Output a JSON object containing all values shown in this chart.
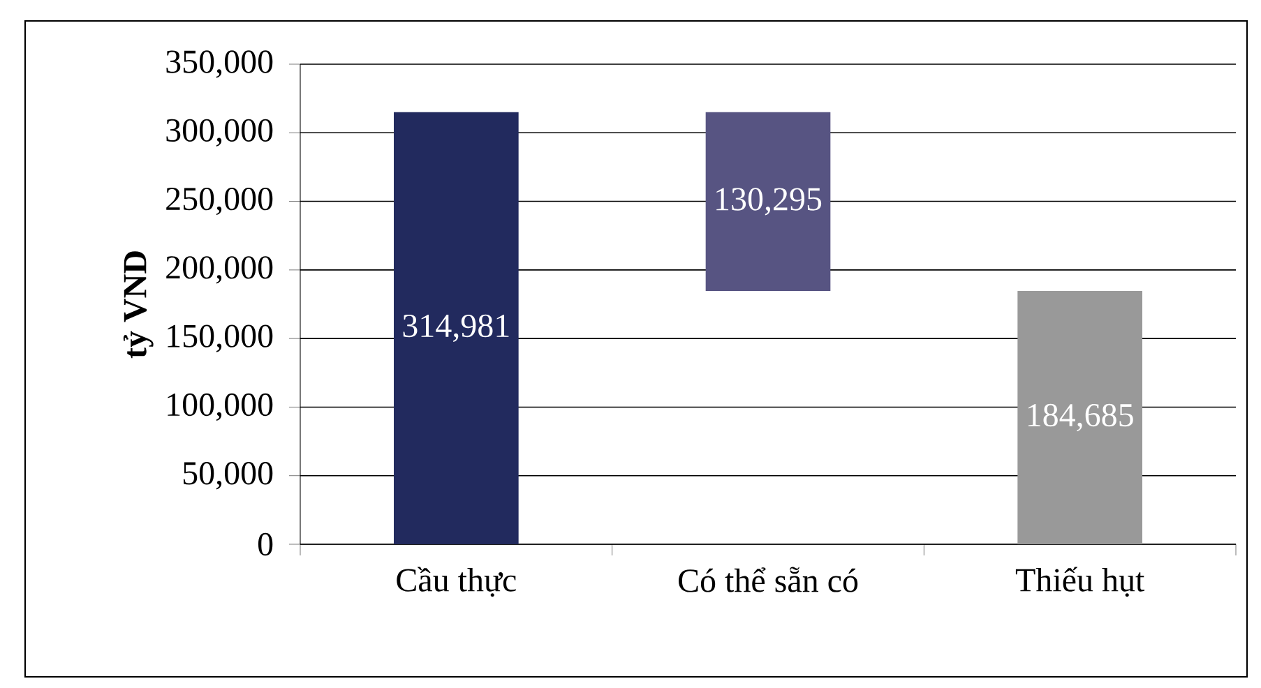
{
  "chart_data": {
    "type": "bar",
    "ylabel": "tỷ VND",
    "categories": [
      "Cầu thực",
      "Có thể sẵn có",
      "Thiếu hụt"
    ],
    "values": [
      314981,
      130295,
      184685
    ],
    "base": [
      0,
      184685,
      0
    ],
    "colors": [
      "#222a5e",
      "#575482",
      "#999999"
    ],
    "data_labels": true,
    "value_labels": [
      "314,981",
      "130,295",
      "184,685"
    ],
    "ylim": [
      0,
      350000
    ],
    "yticks": [
      {
        "value": 0,
        "label": "0"
      },
      {
        "value": 50000,
        "label": "50,000"
      },
      {
        "value": 100000,
        "label": "100,000"
      },
      {
        "value": 150000,
        "label": "150,000"
      },
      {
        "value": 200000,
        "label": "200,000"
      },
      {
        "value": 250000,
        "label": "250,000"
      },
      {
        "value": 300000,
        "label": "300,000"
      },
      {
        "value": 350000,
        "label": "350,000"
      }
    ],
    "grid": "y"
  }
}
